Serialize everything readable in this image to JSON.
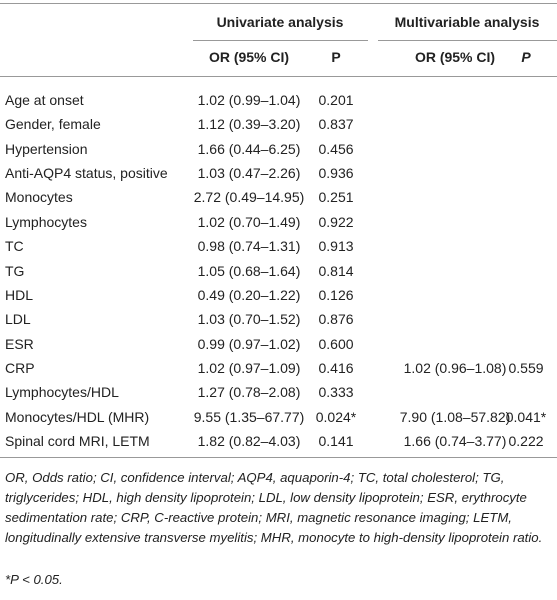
{
  "table": {
    "groups": [
      "Univariate analysis",
      "Multivariable analysis"
    ],
    "columns": [
      "OR (95% CI)",
      "P",
      "OR (95% CI)",
      "P"
    ],
    "rows": [
      [
        "Age at onset",
        "1.02 (0.99–1.04)",
        "0.201"
      ],
      [
        "Gender, female",
        "1.12 (0.39–3.20)",
        "0.837"
      ],
      [
        "Hypertension",
        "1.66 (0.44–6.25)",
        "0.456"
      ],
      [
        "Anti-AQP4 status, positive",
        "1.03 (0.47–2.26)",
        "0.936"
      ],
      [
        "Monocytes",
        "2.72 (0.49–14.95)",
        "0.251"
      ],
      [
        "Lymphocytes",
        "1.02 (0.70–1.49)",
        "0.922"
      ],
      [
        "TC",
        "0.98 (0.74–1.31)",
        "0.913"
      ],
      [
        "TG",
        "1.05 (0.68–1.64)",
        "0.814"
      ],
      [
        "HDL",
        "0.49 (0.20–1.22)",
        "0.126"
      ],
      [
        "LDL",
        "1.03 (0.70–1.52)",
        "0.876"
      ],
      [
        "ESR",
        "0.99 (0.97–1.02)",
        "0.600"
      ],
      [
        "CRP",
        "1.02 (0.97–1.09)",
        "0.416",
        "1.02 (0.96–1.08)",
        "0.559"
      ],
      [
        "Lymphocytes/HDL",
        "1.27 (0.78–2.08)",
        "0.333"
      ],
      [
        "Monocytes/HDL (MHR)",
        "9.55 (1.35–67.77)",
        "0.024*",
        "7.90 (1.08–57.82)",
        "0.041*"
      ],
      [
        "Spinal cord MRI, LETM",
        "1.82 (0.82–4.03)",
        "0.141",
        "1.66 (0.74–3.77)",
        "0.222"
      ]
    ]
  },
  "footnote": "OR, Odds ratio; CI, confidence interval; AQP4, aquaporin-4; TC, total cholesterol; TG, triglycerides; HDL, high density lipoprotein; LDL, low density lipoprotein; ESR, erythrocyte sedimentation rate; CRP, C-reactive protein; MRI, magnetic resonance imaging; LETM, longitudinally extensive transverse myelitis; MHR, monocyte to high-density lipoprotein ratio.",
  "significance_note": "*P < 0.05."
}
